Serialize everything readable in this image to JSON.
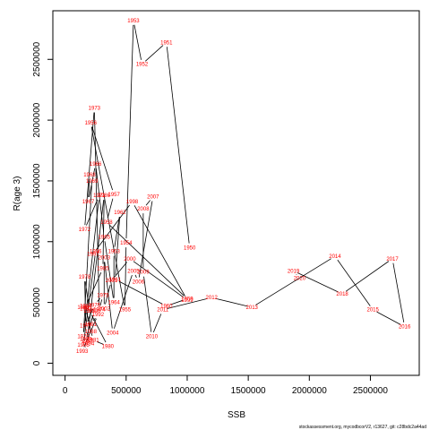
{
  "chart_data": {
    "type": "line",
    "xlabel": "SSB",
    "ylabel": "R(age 3)",
    "xlim": [
      -100000,
      2900000
    ],
    "ylim": [
      -100000,
      2900000
    ],
    "x_ticks": [
      {
        "value": 0,
        "label": "0"
      },
      {
        "value": 500000,
        "label": "500000"
      },
      {
        "value": 1000000,
        "label": "1000000"
      },
      {
        "value": 1500000,
        "label": "1500000"
      },
      {
        "value": 2000000,
        "label": "2000000"
      },
      {
        "value": 2500000,
        "label": "2500000"
      }
    ],
    "y_ticks": [
      {
        "value": 0,
        "label": "0"
      },
      {
        "value": 500000,
        "label": "500000"
      },
      {
        "value": 1000000,
        "label": "1000000"
      },
      {
        "value": 1500000,
        "label": "1500000"
      },
      {
        "value": 2000000,
        "label": "2000000"
      },
      {
        "value": 2500000,
        "label": "2500000"
      }
    ],
    "line_color": "#000000",
    "label_color": "#ff0000",
    "points": [
      {
        "year": "1950",
        "x": 1020000,
        "y": 950000
      },
      {
        "year": "1951",
        "x": 830000,
        "y": 2640000
      },
      {
        "year": "1952",
        "x": 630000,
        "y": 2460000
      },
      {
        "year": "1953",
        "x": 560000,
        "y": 2820000
      },
      {
        "year": "1954",
        "x": 500000,
        "y": 990000
      },
      {
        "year": "1955",
        "x": 490000,
        "y": 440000
      },
      {
        "year": "1956",
        "x": 210000,
        "y": 1980000
      },
      {
        "year": "1957",
        "x": 400000,
        "y": 1390000
      },
      {
        "year": "1958",
        "x": 340000,
        "y": 1160000
      },
      {
        "year": "1959",
        "x": 1000000,
        "y": 530000
      },
      {
        "year": "1960",
        "x": 830000,
        "y": 470000
      },
      {
        "year": "1961",
        "x": 410000,
        "y": 690000
      },
      {
        "year": "1962",
        "x": 450000,
        "y": 1240000
      },
      {
        "year": "1963",
        "x": 400000,
        "y": 920000
      },
      {
        "year": "1964",
        "x": 400000,
        "y": 500000
      },
      {
        "year": "1965",
        "x": 320000,
        "y": 1040000
      },
      {
        "year": "1966",
        "x": 250000,
        "y": 1640000
      },
      {
        "year": "1967",
        "x": 190000,
        "y": 1330000
      },
      {
        "year": "1968",
        "x": 200000,
        "y": 1550000
      },
      {
        "year": "1969",
        "x": 220000,
        "y": 1500000
      },
      {
        "year": "1970",
        "x": 150000,
        "y": 220000
      },
      {
        "year": "1971",
        "x": 280000,
        "y": 1380000
      },
      {
        "year": "1972",
        "x": 160000,
        "y": 1100000
      },
      {
        "year": "1973",
        "x": 240000,
        "y": 2100000
      },
      {
        "year": "1974",
        "x": 280000,
        "y": 440000
      },
      {
        "year": "1975",
        "x": 310000,
        "y": 560000
      },
      {
        "year": "1976",
        "x": 240000,
        "y": 480000
      },
      {
        "year": "1977",
        "x": 170000,
        "y": 310000
      },
      {
        "year": "1978",
        "x": 160000,
        "y": 710000
      },
      {
        "year": "1979",
        "x": 200000,
        "y": 430000
      },
      {
        "year": "1980",
        "x": 350000,
        "y": 140000
      },
      {
        "year": "1981",
        "x": 230000,
        "y": 190000
      },
      {
        "year": "1982",
        "x": 170000,
        "y": 450000
      },
      {
        "year": "1983",
        "x": 150000,
        "y": 460000
      },
      {
        "year": "1984",
        "x": 170000,
        "y": 470000
      },
      {
        "year": "1985",
        "x": 310000,
        "y": 780000
      },
      {
        "year": "1986",
        "x": 320000,
        "y": 1380000
      },
      {
        "year": "1987",
        "x": 180000,
        "y": 180000
      },
      {
        "year": "1988",
        "x": 210000,
        "y": 260000
      },
      {
        "year": "1989",
        "x": 170000,
        "y": 200000
      },
      {
        "year": "1990",
        "x": 240000,
        "y": 430000
      },
      {
        "year": "1991",
        "x": 210000,
        "y": 320000
      },
      {
        "year": "1992",
        "x": 270000,
        "y": 400000
      },
      {
        "year": "1993",
        "x": 140000,
        "y": 100000
      },
      {
        "year": "1994",
        "x": 190000,
        "y": 160000
      },
      {
        "year": "1995",
        "x": 150000,
        "y": 150000
      },
      {
        "year": "1996",
        "x": 250000,
        "y": 920000
      },
      {
        "year": "1997",
        "x": 230000,
        "y": 900000
      },
      {
        "year": "1998",
        "x": 550000,
        "y": 1330000
      },
      {
        "year": "1999",
        "x": 1000000,
        "y": 520000
      },
      {
        "year": "2000",
        "x": 530000,
        "y": 860000
      },
      {
        "year": "2001",
        "x": 380000,
        "y": 680000
      },
      {
        "year": "2002",
        "x": 320000,
        "y": 450000
      },
      {
        "year": "2003",
        "x": 320000,
        "y": 870000
      },
      {
        "year": "2004",
        "x": 390000,
        "y": 250000
      },
      {
        "year": "2005",
        "x": 560000,
        "y": 760000
      },
      {
        "year": "2006",
        "x": 600000,
        "y": 670000
      },
      {
        "year": "2007",
        "x": 720000,
        "y": 1370000
      },
      {
        "year": "2008",
        "x": 640000,
        "y": 1270000
      },
      {
        "year": "2009",
        "x": 640000,
        "y": 750000
      },
      {
        "year": "2010",
        "x": 710000,
        "y": 220000
      },
      {
        "year": "2011",
        "x": 800000,
        "y": 440000
      },
      {
        "year": "2012",
        "x": 1200000,
        "y": 540000
      },
      {
        "year": "2013",
        "x": 1530000,
        "y": 460000
      },
      {
        "year": "2014",
        "x": 2210000,
        "y": 880000
      },
      {
        "year": "2015",
        "x": 2520000,
        "y": 440000
      },
      {
        "year": "2016",
        "x": 2780000,
        "y": 300000
      },
      {
        "year": "2017",
        "x": 2680000,
        "y": 860000
      },
      {
        "year": "2018",
        "x": 2270000,
        "y": 570000
      },
      {
        "year": "2019",
        "x": 1870000,
        "y": 760000
      },
      {
        "year": "2020",
        "x": 1920000,
        "y": 700000
      }
    ]
  },
  "footer_note": "stockassessment.org, mycodbcorV2, r13627, git: c28bdc2a44ad"
}
